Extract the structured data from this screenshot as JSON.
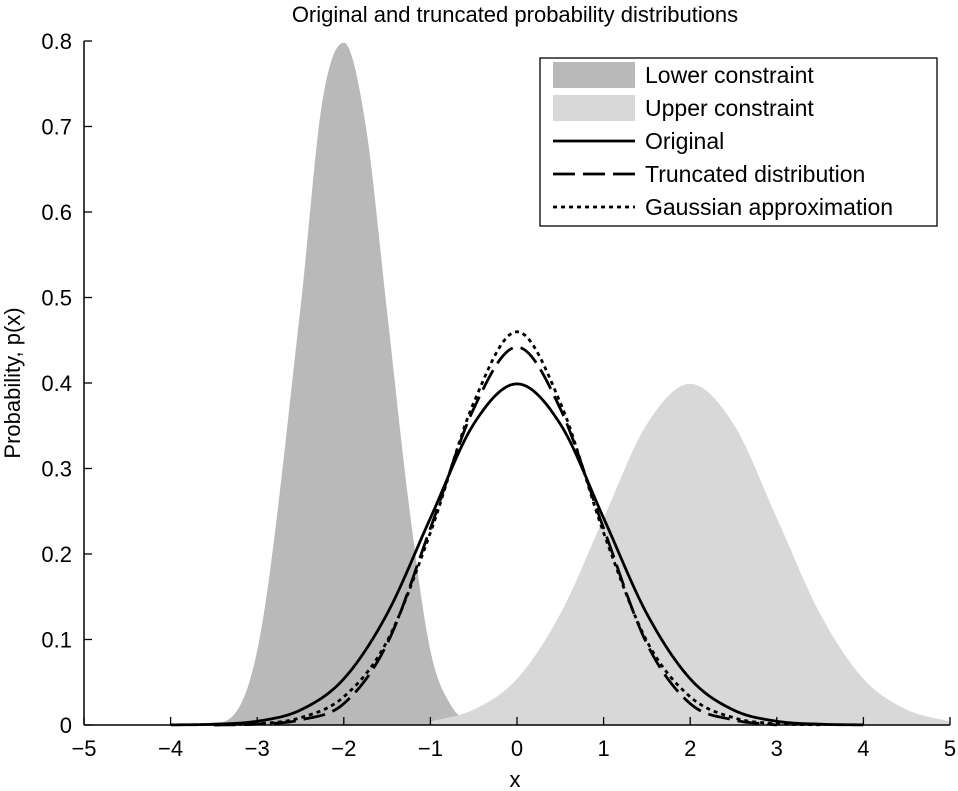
{
  "chart_data": {
    "type": "area",
    "title": "Original and truncated probability distributions",
    "xlabel": "x",
    "ylabel": "Probability, p(x)",
    "xlim": [
      -5,
      5
    ],
    "ylim": [
      0,
      0.8
    ],
    "x_ticks": [
      -5,
      -4,
      -3,
      -2,
      -1,
      0,
      1,
      2,
      3,
      4,
      5
    ],
    "x_tick_labels": [
      "−5",
      "−4",
      "−3",
      "−2",
      "−1",
      "0",
      "1",
      "2",
      "3",
      "4",
      "5"
    ],
    "y_ticks": [
      0,
      0.1,
      0.2,
      0.3,
      0.4,
      0.5,
      0.6,
      0.7,
      0.8
    ],
    "y_tick_labels": [
      "0",
      "0.1",
      "0.2",
      "0.3",
      "0.4",
      "0.5",
      "0.6",
      "0.7",
      "0.8"
    ],
    "grid": false,
    "legend_position": "top-right",
    "series": [
      {
        "name": "Lower constraint",
        "style": "filled-area",
        "color": "#b9b9b9",
        "x": [
          -4,
          -3.5,
          -3,
          -2.5,
          -2.25,
          -2,
          -1.75,
          -1.5,
          -1.25,
          -1,
          -0.75,
          -0.5
        ],
        "values": [
          0.0,
          0.0015,
          0.087,
          0.488,
          0.728,
          0.798,
          0.703,
          0.483,
          0.259,
          0.087,
          0.021,
          0.0015
        ]
      },
      {
        "name": "Upper constraint",
        "style": "filled-area",
        "color": "#d8d8d8",
        "x": [
          -1,
          -0.5,
          0,
          0.5,
          1,
          1.5,
          2,
          2.5,
          3,
          3.5,
          4,
          4.5,
          5
        ],
        "values": [
          0.004,
          0.018,
          0.054,
          0.13,
          0.242,
          0.352,
          0.399,
          0.352,
          0.242,
          0.13,
          0.054,
          0.018,
          0.004
        ]
      },
      {
        "name": "Original",
        "style": "solid",
        "x": [
          -4,
          -3.5,
          -3,
          -2.5,
          -2,
          -1.5,
          -1,
          -0.5,
          0,
          0.5,
          1,
          1.5,
          2,
          2.5,
          3,
          3.5,
          4
        ],
        "values": [
          0.0001,
          0.0009,
          0.0044,
          0.0175,
          0.054,
          0.13,
          0.242,
          0.352,
          0.399,
          0.352,
          0.242,
          0.13,
          0.054,
          0.0175,
          0.0044,
          0.0009,
          0.0001
        ]
      },
      {
        "name": "Truncated distribution",
        "style": "dashed",
        "x": [
          -3.5,
          -3,
          -2.5,
          -2,
          -1.5,
          -1,
          -0.5,
          0,
          0.5,
          1,
          1.5,
          2,
          2.5,
          3
        ],
        "values": [
          0.0,
          0.001,
          0.006,
          0.025,
          0.095,
          0.23,
          0.37,
          0.442,
          0.37,
          0.23,
          0.095,
          0.025,
          0.006,
          0.0
        ]
      },
      {
        "name": "Gaussian approximation",
        "style": "dotted",
        "x": [
          -3.5,
          -3,
          -2.5,
          -2,
          -1.5,
          -1,
          -0.5,
          0,
          0.5,
          1,
          1.5,
          2,
          2.5,
          3,
          3.5
        ],
        "values": [
          0.0002,
          0.0015,
          0.0085,
          0.033,
          0.098,
          0.225,
          0.377,
          0.46,
          0.377,
          0.225,
          0.098,
          0.033,
          0.0085,
          0.0015,
          0.0002
        ]
      }
    ]
  }
}
